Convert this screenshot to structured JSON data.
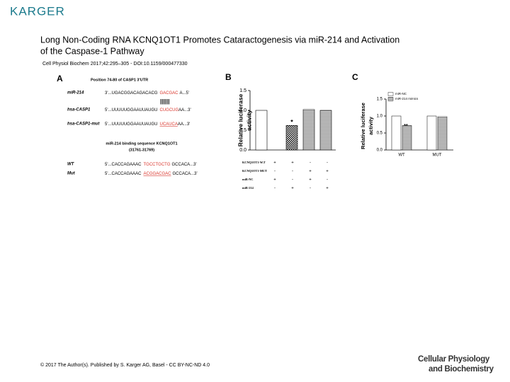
{
  "header": {
    "logo": "KARGER",
    "title": [
      "Long Non-Coding RNA KCNQ1OT1 Promotes Cataractogenesis via miR-214 and Activation",
      "of the Caspase-1 Pathway"
    ],
    "citation": "Cell Physiol Biochem 2017;42:295–305 - DOI:10.1159/000477330"
  },
  "panel_a": {
    "label": "A",
    "heading": "Position 74-80 of CASP1 3'UTR",
    "subheading": [
      "miR-214 binding sequence KCNQ1OT1",
      "(31761-31769)"
    ],
    "rows": [
      {
        "label": "miR-214",
        "sequence": [
          "3'...UGACGGACAGACACG",
          "GACGAC",
          "A...5'"
        ]
      },
      {
        "label": "hsa-CASP1",
        "sequence": [
          "5'...UUUUUGGAAUUAUGU",
          "CUGCUG",
          "AA...3'"
        ]
      },
      {
        "label": "hsa-CASP1-mut",
        "sequence": [
          "5'...UUUUUGGAAUUAUGU",
          "UCAUCA",
          "AA...3'"
        ]
      },
      {
        "label": "WT",
        "sequence": [
          "5'...CACCAGAAAC",
          "TGCCTGCTG",
          "GCCACA...3'"
        ]
      },
      {
        "label": "Mut",
        "sequence": [
          "5'...CACCAGAAAC",
          "ACGGACGAC",
          "GCCACA...3'"
        ]
      }
    ]
  },
  "chart_data": [
    {
      "type": "bar",
      "label": "B",
      "ylabel": [
        "Relative luciferase",
        "activity"
      ],
      "categories": [
        null,
        null,
        null,
        null
      ],
      "values": [
        1.0,
        0.62,
        1.02,
        1.0
      ],
      "bar_styles": [
        "white",
        "dots",
        "stripes",
        "stripes"
      ],
      "ylim": [
        0,
        1.5
      ],
      "yticks": [
        {
          "value": 0,
          "label": "0.0"
        },
        0.5,
        {
          "value": 1,
          "label": "1.0"
        },
        1.5
      ],
      "annotation": "*",
      "conditions": [
        {
          "label": "KCNQ1OT1-W.T",
          "signs": [
            "+",
            "+",
            "-",
            "-"
          ]
        },
        {
          "label": "KCNQ1OT1-MUT",
          "signs": [
            "-",
            "-",
            "+",
            "+"
          ]
        },
        {
          "label": "miR-NC",
          "signs": [
            "+",
            "-",
            "+",
            "-"
          ]
        },
        {
          "label": "miR-214",
          "signs": [
            "-",
            "+",
            "-",
            "+"
          ]
        }
      ]
    },
    {
      "type": "bar",
      "label": "C",
      "ylabel": [
        "Relative luciferase",
        "activity"
      ],
      "categories": [
        "WT",
        "MUT"
      ],
      "series": [
        {
          "name": "miR-NC",
          "fill": "white",
          "values": [
            1.0,
            1.0
          ]
        },
        {
          "name": "miR-214 mimics",
          "fill": "stripes",
          "values": [
            0.72,
            0.98
          ]
        }
      ],
      "ylim": [
        0,
        1.5
      ],
      "yticks": [
        {
          "value": 0,
          "label": "0.0"
        },
        0.5,
        {
          "value": 1,
          "label": "1.0"
        },
        1.5
      ],
      "annotation": "**"
    }
  ],
  "footer": {
    "copyright": "© 2017 The Author(s). Published by S. Karger AG, Basel - CC BY-NC-ND 4.0",
    "journal": [
      "Cellular Physiology",
      "and Biochemistry"
    ]
  }
}
